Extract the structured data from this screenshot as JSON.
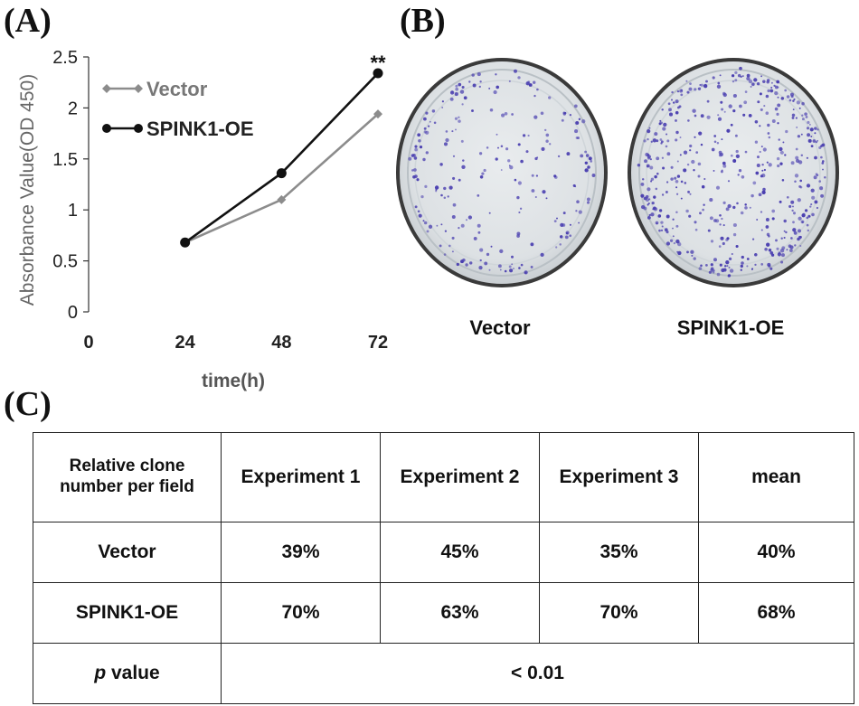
{
  "panels": {
    "a": "(A)",
    "b": "(B)",
    "c": "(C)"
  },
  "chart_data": {
    "type": "line",
    "x": [
      24,
      48,
      72
    ],
    "xticks": [
      0,
      24,
      48,
      72
    ],
    "xlim": [
      0,
      72
    ],
    "yticks": [
      0,
      0.5,
      1,
      1.5,
      2,
      2.5
    ],
    "ylim": [
      0,
      2.5
    ],
    "xlabel": "time(h)",
    "ylabel": "Absorbance Value(OD 450)",
    "annotation": {
      "text": "**",
      "x": 72
    },
    "series": [
      {
        "name": "Vector",
        "values": [
          0.68,
          1.1,
          1.94
        ],
        "color": "#8c8c8c",
        "marker": "diamond"
      },
      {
        "name": "SPINK1-OE",
        "values": [
          0.68,
          1.36,
          2.34
        ],
        "color": "#111111",
        "marker": "circle"
      }
    ]
  },
  "dishes": {
    "vector_label": "Vector",
    "oe_label": "SPINK1-OE",
    "stain_color": "#4a3fb0"
  },
  "table": {
    "header": [
      "Relative clone number per field",
      "Experiment 1",
      "Experiment 2",
      "Experiment 3",
      "mean"
    ],
    "rows": [
      {
        "label": "Vector",
        "cells": [
          "39%",
          "45%",
          "35%",
          "40%"
        ]
      },
      {
        "label": "SPINK1-OE",
        "cells": [
          "70%",
          "63%",
          "70%",
          "68%"
        ]
      }
    ],
    "pvalue": {
      "label_italic": "p",
      "label_rest": " value",
      "value": "< 0.01"
    }
  }
}
